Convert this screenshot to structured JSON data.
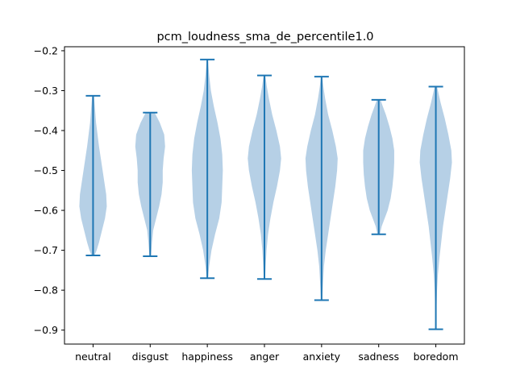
{
  "chart_data": {
    "type": "violin",
    "title": "pcm_loudness_sma_de_percentile1.0",
    "xlabel": "",
    "ylabel": "",
    "categories": [
      "neutral",
      "disgust",
      "happiness",
      "anger",
      "anxiety",
      "sadness",
      "boredom"
    ],
    "ylim": [
      -0.935,
      -0.19
    ],
    "yticks": [
      -0.9,
      -0.8,
      -0.7,
      -0.6,
      -0.5,
      -0.4,
      -0.3,
      -0.2
    ],
    "ytick_labels": [
      "−0.9",
      "−0.8",
      "−0.7",
      "−0.6",
      "−0.5",
      "−0.4",
      "−0.3",
      "−0.2"
    ],
    "grid": false,
    "colors": {
      "body": "#a9c8e2",
      "line": "#1f77b4"
    },
    "violins": [
      {
        "name": "neutral",
        "min": -0.713,
        "max": -0.313,
        "density": [
          [
            -0.713,
            0.05
          ],
          [
            -0.7,
            0.12
          ],
          [
            -0.68,
            0.2
          ],
          [
            -0.65,
            0.3
          ],
          [
            -0.62,
            0.4
          ],
          [
            -0.59,
            0.46
          ],
          [
            -0.56,
            0.44
          ],
          [
            -0.53,
            0.38
          ],
          [
            -0.5,
            0.32
          ],
          [
            -0.47,
            0.26
          ],
          [
            -0.44,
            0.2
          ],
          [
            -0.41,
            0.15
          ],
          [
            -0.38,
            0.1
          ],
          [
            -0.35,
            0.07
          ],
          [
            -0.313,
            0.03
          ]
        ]
      },
      {
        "name": "disgust",
        "min": -0.715,
        "max": -0.355,
        "density": [
          [
            -0.715,
            0.02
          ],
          [
            -0.7,
            0.04
          ],
          [
            -0.68,
            0.06
          ],
          [
            -0.65,
            0.1
          ],
          [
            -0.62,
            0.2
          ],
          [
            -0.59,
            0.3
          ],
          [
            -0.56,
            0.38
          ],
          [
            -0.53,
            0.42
          ],
          [
            -0.5,
            0.42
          ],
          [
            -0.47,
            0.45
          ],
          [
            -0.44,
            0.5
          ],
          [
            -0.41,
            0.47
          ],
          [
            -0.38,
            0.32
          ],
          [
            -0.355,
            0.15
          ]
        ]
      },
      {
        "name": "happiness",
        "min": -0.77,
        "max": -0.222,
        "density": [
          [
            -0.77,
            0.02
          ],
          [
            -0.74,
            0.06
          ],
          [
            -0.7,
            0.14
          ],
          [
            -0.66,
            0.26
          ],
          [
            -0.62,
            0.4
          ],
          [
            -0.58,
            0.48
          ],
          [
            -0.54,
            0.5
          ],
          [
            -0.5,
            0.52
          ],
          [
            -0.46,
            0.5
          ],
          [
            -0.42,
            0.44
          ],
          [
            -0.38,
            0.34
          ],
          [
            -0.34,
            0.22
          ],
          [
            -0.3,
            0.12
          ],
          [
            -0.26,
            0.06
          ],
          [
            -0.222,
            0.02
          ]
        ]
      },
      {
        "name": "anger",
        "min": -0.772,
        "max": -0.262,
        "density": [
          [
            -0.772,
            0.02
          ],
          [
            -0.74,
            0.04
          ],
          [
            -0.7,
            0.07
          ],
          [
            -0.66,
            0.12
          ],
          [
            -0.62,
            0.2
          ],
          [
            -0.58,
            0.3
          ],
          [
            -0.54,
            0.42
          ],
          [
            -0.5,
            0.52
          ],
          [
            -0.47,
            0.56
          ],
          [
            -0.44,
            0.52
          ],
          [
            -0.4,
            0.4
          ],
          [
            -0.36,
            0.26
          ],
          [
            -0.32,
            0.15
          ],
          [
            -0.29,
            0.08
          ],
          [
            -0.262,
            0.03
          ]
        ]
      },
      {
        "name": "anxiety",
        "min": -0.825,
        "max": -0.265,
        "density": [
          [
            -0.825,
            0.02
          ],
          [
            -0.78,
            0.05
          ],
          [
            -0.74,
            0.08
          ],
          [
            -0.7,
            0.14
          ],
          [
            -0.66,
            0.22
          ],
          [
            -0.62,
            0.3
          ],
          [
            -0.58,
            0.38
          ],
          [
            -0.54,
            0.46
          ],
          [
            -0.5,
            0.52
          ],
          [
            -0.47,
            0.54
          ],
          [
            -0.44,
            0.48
          ],
          [
            -0.4,
            0.36
          ],
          [
            -0.36,
            0.22
          ],
          [
            -0.32,
            0.12
          ],
          [
            -0.29,
            0.06
          ],
          [
            -0.265,
            0.02
          ]
        ]
      },
      {
        "name": "sadness",
        "min": -0.66,
        "max": -0.323,
        "density": [
          [
            -0.66,
            0.04
          ],
          [
            -0.64,
            0.1
          ],
          [
            -0.62,
            0.2
          ],
          [
            -0.6,
            0.3
          ],
          [
            -0.57,
            0.4
          ],
          [
            -0.54,
            0.46
          ],
          [
            -0.51,
            0.5
          ],
          [
            -0.48,
            0.52
          ],
          [
            -0.45,
            0.52
          ],
          [
            -0.42,
            0.46
          ],
          [
            -0.39,
            0.36
          ],
          [
            -0.36,
            0.24
          ],
          [
            -0.34,
            0.14
          ],
          [
            -0.323,
            0.06
          ]
        ]
      },
      {
        "name": "boredom",
        "min": -0.898,
        "max": -0.29,
        "density": [
          [
            -0.898,
            0.01
          ],
          [
            -0.85,
            0.02
          ],
          [
            -0.8,
            0.04
          ],
          [
            -0.76,
            0.07
          ],
          [
            -0.72,
            0.12
          ],
          [
            -0.68,
            0.18
          ],
          [
            -0.64,
            0.24
          ],
          [
            -0.6,
            0.32
          ],
          [
            -0.56,
            0.4
          ],
          [
            -0.52,
            0.48
          ],
          [
            -0.48,
            0.54
          ],
          [
            -0.45,
            0.52
          ],
          [
            -0.41,
            0.42
          ],
          [
            -0.37,
            0.3
          ],
          [
            -0.33,
            0.16
          ],
          [
            -0.29,
            0.04
          ]
        ]
      }
    ]
  }
}
